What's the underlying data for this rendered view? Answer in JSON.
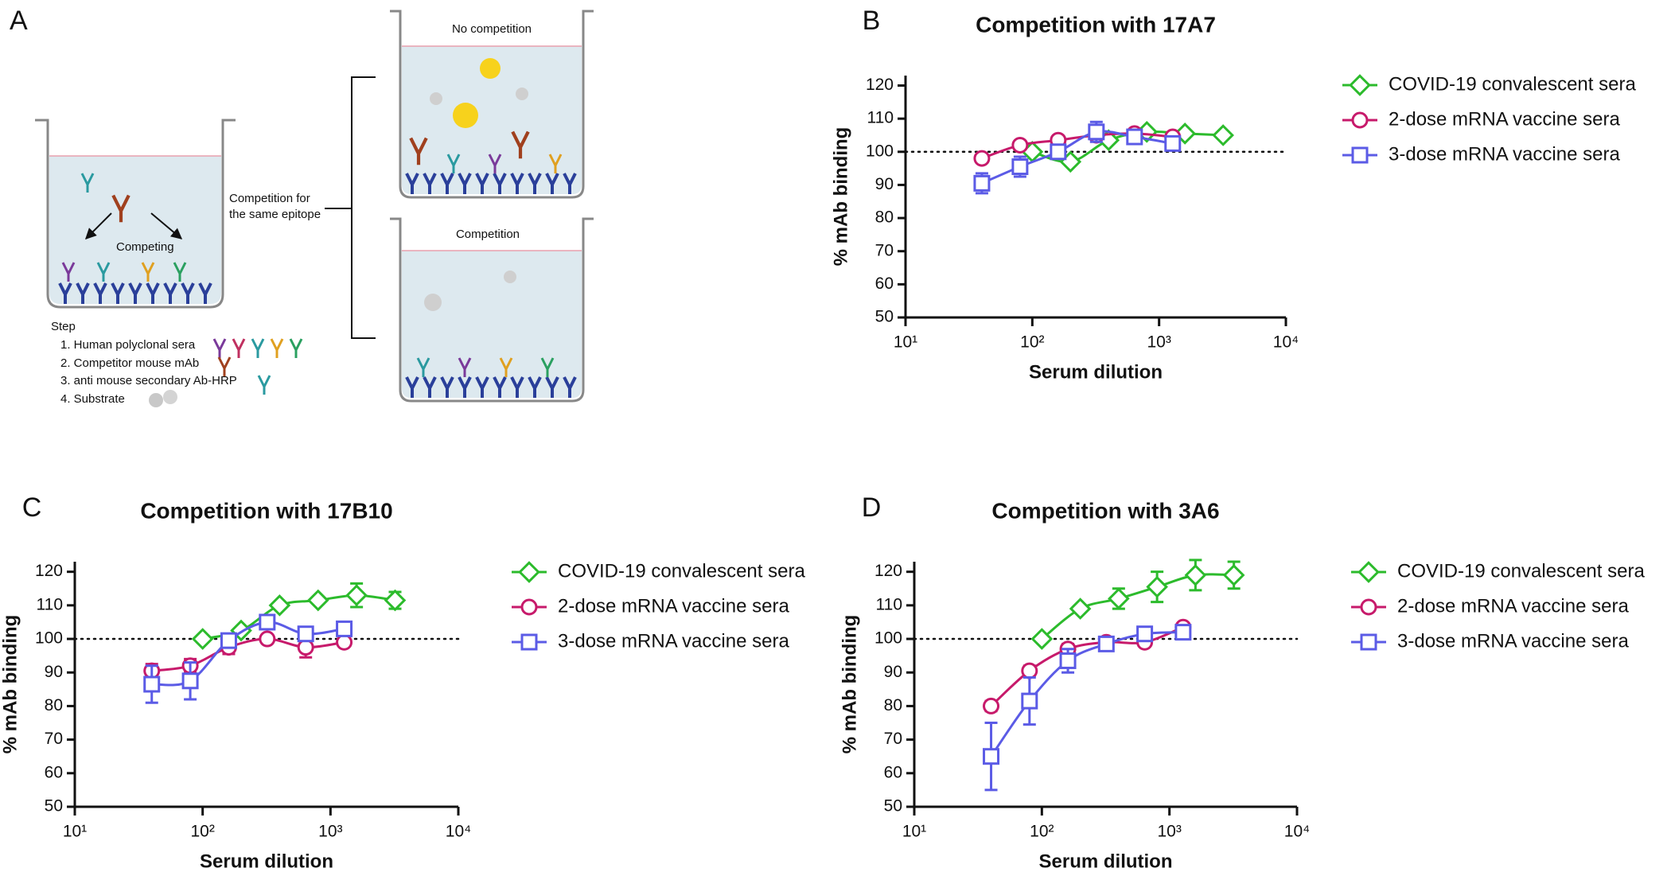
{
  "diagram": {
    "panel_label": "A",
    "no_competition": "No competition",
    "competition": "Competition",
    "bracket_label": [
      "Competition for",
      "the same epitope"
    ],
    "competing": "Competing",
    "step_title": "Step",
    "steps": [
      "1. Human polyclonal sera",
      "2. Competitor mouse mAb",
      "3. anti mouse secondary Ab-HRP",
      "4. Substrate"
    ]
  },
  "chart_data": [
    {
      "type": "scatter",
      "panel_label": "B",
      "title": "Competition with 17A7",
      "xlabel": "Serum dilution",
      "ylabel": "% mAb binding",
      "xscale": "log",
      "xlim": [
        10,
        10000
      ],
      "ylim": [
        50,
        123
      ],
      "xticks": [
        {
          "value": 10,
          "label": "10¹"
        },
        {
          "value": 100,
          "label": "10²"
        },
        {
          "value": 1000,
          "label": "10³"
        },
        {
          "value": 10000,
          "label": "10⁴"
        }
      ],
      "yticks": [
        50,
        60,
        70,
        80,
        90,
        100,
        110,
        120
      ],
      "refline": 100,
      "legend": "right",
      "series": [
        {
          "name": "COVID-19 convalescent sera",
          "color": "#2cbb2c",
          "marker": "diamond",
          "x": [
            100,
            200,
            400,
            800,
            1600,
            3200
          ],
          "values": [
            100,
            97,
            103.5,
            106,
            105.5,
            105
          ],
          "errors": [
            1,
            1,
            1,
            1,
            1,
            1
          ]
        },
        {
          "name": "2-dose mRNA vaccine sera",
          "color": "#c71a6b",
          "marker": "circle",
          "x": [
            40,
            80,
            160,
            320,
            640,
            1280
          ],
          "values": [
            98,
            102,
            103.5,
            105,
            105.5,
            104.5
          ],
          "errors": [
            1,
            1,
            1,
            1,
            1,
            1
          ]
        },
        {
          "name": "3-dose mRNA vaccine sera",
          "color": "#5b5be6",
          "marker": "square",
          "x": [
            40,
            80,
            160,
            320,
            640,
            1280
          ],
          "values": [
            90.5,
            95.5,
            100,
            106,
            104.5,
            102.5
          ],
          "errors": [
            3,
            3,
            2,
            3,
            1,
            1
          ]
        }
      ]
    },
    {
      "type": "scatter",
      "panel_label": "C",
      "title": "Competition with 17B10",
      "xlabel": "Serum dilution",
      "ylabel": "% mAb binding",
      "xscale": "log",
      "xlim": [
        10,
        10000
      ],
      "ylim": [
        50,
        123
      ],
      "xticks": [
        {
          "value": 10,
          "label": "10¹"
        },
        {
          "value": 100,
          "label": "10²"
        },
        {
          "value": 1000,
          "label": "10³"
        },
        {
          "value": 10000,
          "label": "10⁴"
        }
      ],
      "yticks": [
        50,
        60,
        70,
        80,
        90,
        100,
        110,
        120
      ],
      "refline": 100,
      "legend": "right",
      "series": [
        {
          "name": "COVID-19 convalescent sera",
          "color": "#2cbb2c",
          "marker": "diamond",
          "x": [
            100,
            200,
            400,
            800,
            1600,
            3200
          ],
          "values": [
            100,
            102.5,
            110,
            111.5,
            113,
            111.5
          ],
          "errors": [
            1,
            1,
            1,
            1,
            3.5,
            2.5
          ]
        },
        {
          "name": "2-dose mRNA vaccine sera",
          "color": "#c71a6b",
          "marker": "circle",
          "x": [
            40,
            80,
            160,
            320,
            640,
            1280
          ],
          "values": [
            90.5,
            92,
            97.5,
            100,
            97.5,
            99
          ],
          "errors": [
            2,
            2,
            2,
            1,
            3,
            1
          ]
        },
        {
          "name": "3-dose mRNA vaccine sera",
          "color": "#5b5be6",
          "marker": "square",
          "x": [
            40,
            80,
            160,
            320,
            640,
            1280
          ],
          "values": [
            86.5,
            87.5,
            99.5,
            105,
            101.5,
            103
          ],
          "errors": [
            5.5,
            5.5,
            2,
            1,
            1,
            1
          ]
        }
      ]
    },
    {
      "type": "scatter",
      "panel_label": "D",
      "title": "Competition with 3A6",
      "xlabel": "Serum dilution",
      "ylabel": "% mAb binding",
      "xscale": "log",
      "xlim": [
        10,
        10000
      ],
      "ylim": [
        50,
        123
      ],
      "xticks": [
        {
          "value": 10,
          "label": "10¹"
        },
        {
          "value": 100,
          "label": "10²"
        },
        {
          "value": 1000,
          "label": "10³"
        },
        {
          "value": 10000,
          "label": "10⁴"
        }
      ],
      "yticks": [
        50,
        60,
        70,
        80,
        90,
        100,
        110,
        120
      ],
      "refline": 100,
      "legend": "right",
      "series": [
        {
          "name": "COVID-19 convalescent sera",
          "color": "#2cbb2c",
          "marker": "diamond",
          "x": [
            100,
            200,
            400,
            800,
            1600,
            3200
          ],
          "values": [
            100,
            109,
            112,
            115.5,
            119,
            119
          ],
          "errors": [
            1,
            1,
            3,
            4.5,
            4.5,
            4
          ]
        },
        {
          "name": "2-dose mRNA vaccine sera",
          "color": "#c71a6b",
          "marker": "circle",
          "x": [
            40,
            80,
            160,
            320,
            640,
            1280
          ],
          "values": [
            80,
            90.5,
            97,
            99,
            99,
            103.5
          ],
          "errors": [
            1.5,
            1.5,
            1.5,
            1,
            1,
            1
          ]
        },
        {
          "name": "3-dose mRNA vaccine sera",
          "color": "#5b5be6",
          "marker": "square",
          "x": [
            40,
            80,
            160,
            320,
            640,
            1280
          ],
          "values": [
            65,
            81.5,
            93.5,
            98.5,
            101.5,
            102
          ],
          "errors": [
            10,
            7,
            3.5,
            1.5,
            1,
            1
          ]
        }
      ]
    }
  ]
}
